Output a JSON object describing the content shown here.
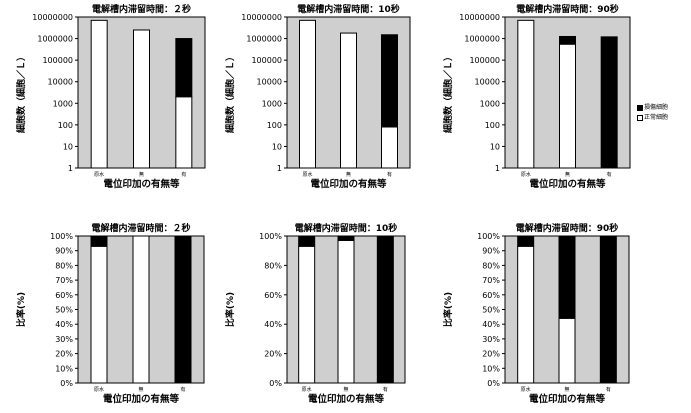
{
  "legend": {
    "damaged": "損傷細胞",
    "normal": "正常細胞"
  },
  "colors": {
    "damaged": "#000000",
    "normal": "#ffffff",
    "plot_bg": "#cfcfcf",
    "axis": "#000000"
  },
  "chart_data": [
    {
      "type": "bar",
      "stacked": true,
      "title": "電解槽内滞留時間：２秒",
      "xlabel": "電位印加の有無等",
      "ylabel": "細胞数（細胞／Ｌ）",
      "yscale": "log",
      "ylim": [
        1,
        10000000
      ],
      "yticks": [
        "1",
        "10",
        "100",
        "1000",
        "10000",
        "100000",
        "1000000",
        "10000000"
      ],
      "categories": [
        "原水",
        "無",
        "有"
      ],
      "series": [
        {
          "name": "正常細胞",
          "values": [
            7000000,
            2500000,
            2000
          ]
        },
        {
          "name": "損傷細胞",
          "values": [
            0,
            0,
            1000000
          ]
        }
      ]
    },
    {
      "type": "bar",
      "stacked": true,
      "title": "電解槽内滞留時間：10秒",
      "xlabel": "電位印加の有無等",
      "ylabel": "細胞数（細胞／Ｌ）",
      "yscale": "log",
      "ylim": [
        1,
        10000000
      ],
      "yticks": [
        "1",
        "10",
        "100",
        "1000",
        "10000",
        "100000",
        "1000000",
        "10000000"
      ],
      "categories": [
        "原水",
        "無",
        "有"
      ],
      "series": [
        {
          "name": "正常細胞",
          "values": [
            7000000,
            1800000,
            80
          ]
        },
        {
          "name": "損傷細胞",
          "values": [
            0,
            0,
            1500000
          ]
        }
      ]
    },
    {
      "type": "bar",
      "stacked": true,
      "title": "電解槽内滞留時間：90秒",
      "xlabel": "電位印加の有無等",
      "ylabel": "細胞数（細胞／Ｌ）",
      "yscale": "log",
      "ylim": [
        1,
        10000000
      ],
      "yticks": [
        "1",
        "10",
        "100",
        "1000",
        "10000",
        "100000",
        "1000000",
        "10000000"
      ],
      "categories": [
        "原水",
        "無",
        "有"
      ],
      "legend_position": "right",
      "series": [
        {
          "name": "正常細胞",
          "values": [
            7000000,
            550000,
            0
          ]
        },
        {
          "name": "損傷細胞",
          "values": [
            0,
            700000,
            1200000
          ]
        }
      ]
    },
    {
      "type": "bar",
      "stacked": true,
      "title": "電解槽内滞留時間：２秒",
      "xlabel": "電位印加の有無等",
      "ylabel": "比率(%)",
      "ylim": [
        0,
        100
      ],
      "yticks": [
        "0%",
        "10%",
        "20%",
        "30%",
        "40%",
        "50%",
        "60%",
        "70%",
        "80%",
        "90%",
        "100%"
      ],
      "categories": [
        "原水",
        "無",
        "有"
      ],
      "series": [
        {
          "name": "正常細胞",
          "values": [
            93,
            100,
            0
          ]
        },
        {
          "name": "損傷細胞",
          "values": [
            7,
            0,
            100
          ]
        }
      ]
    },
    {
      "type": "bar",
      "stacked": true,
      "title": "電解槽内滞留時間：10秒",
      "xlabel": "電位印加の有無等",
      "ylabel": "比率(%)",
      "ylim": [
        0,
        100
      ],
      "yticks": [
        "0%",
        "20%",
        "40%",
        "60%",
        "80%",
        "100%"
      ],
      "categories": [
        "原水",
        "無",
        "有"
      ],
      "series": [
        {
          "name": "正常細胞",
          "values": [
            93,
            97,
            0
          ]
        },
        {
          "name": "損傷細胞",
          "values": [
            7,
            3,
            100
          ]
        }
      ]
    },
    {
      "type": "bar",
      "stacked": true,
      "title": "電解槽内滞留時間：90秒",
      "xlabel": "電位印加の有無等",
      "ylabel": "比率(%)",
      "ylim": [
        0,
        100
      ],
      "yticks": [
        "0%",
        "10%",
        "20%",
        "30%",
        "40%",
        "50%",
        "60%",
        "70%",
        "80%",
        "90%",
        "100%"
      ],
      "categories": [
        "原水",
        "無",
        "有"
      ],
      "series": [
        {
          "name": "正常細胞",
          "values": [
            93,
            44,
            0
          ]
        },
        {
          "name": "損傷細胞",
          "values": [
            7,
            56,
            100
          ]
        }
      ]
    }
  ]
}
